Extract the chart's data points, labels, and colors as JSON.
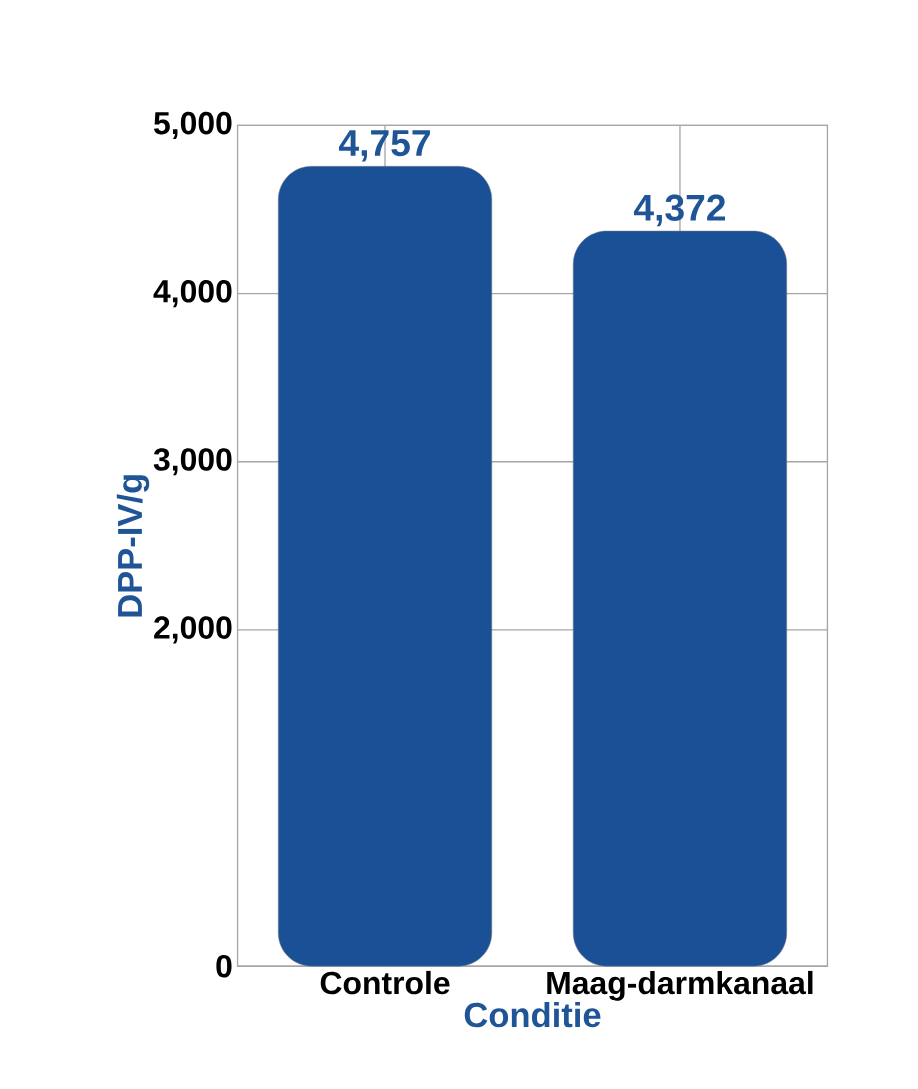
{
  "chart_data": {
    "type": "bar",
    "xlabel": "Conditie",
    "ylabel": "DPP-IV/g",
    "categories": [
      "Controle",
      "Maag-darmkanaal"
    ],
    "values": [
      4757,
      4372
    ],
    "color": "#1a5096",
    "ylim": [
      0,
      5000
    ],
    "yticks": [
      {
        "value": 0,
        "label": "0"
      },
      {
        "value": 2000,
        "label": "2,000"
      },
      {
        "value": 3000,
        "label": "3,000"
      },
      {
        "value": 4000,
        "label": "4,000"
      },
      {
        "value": 5000,
        "label": "5,000"
      }
    ],
    "value_labels": [
      "4,757",
      "4,372"
    ],
    "grid": true
  }
}
